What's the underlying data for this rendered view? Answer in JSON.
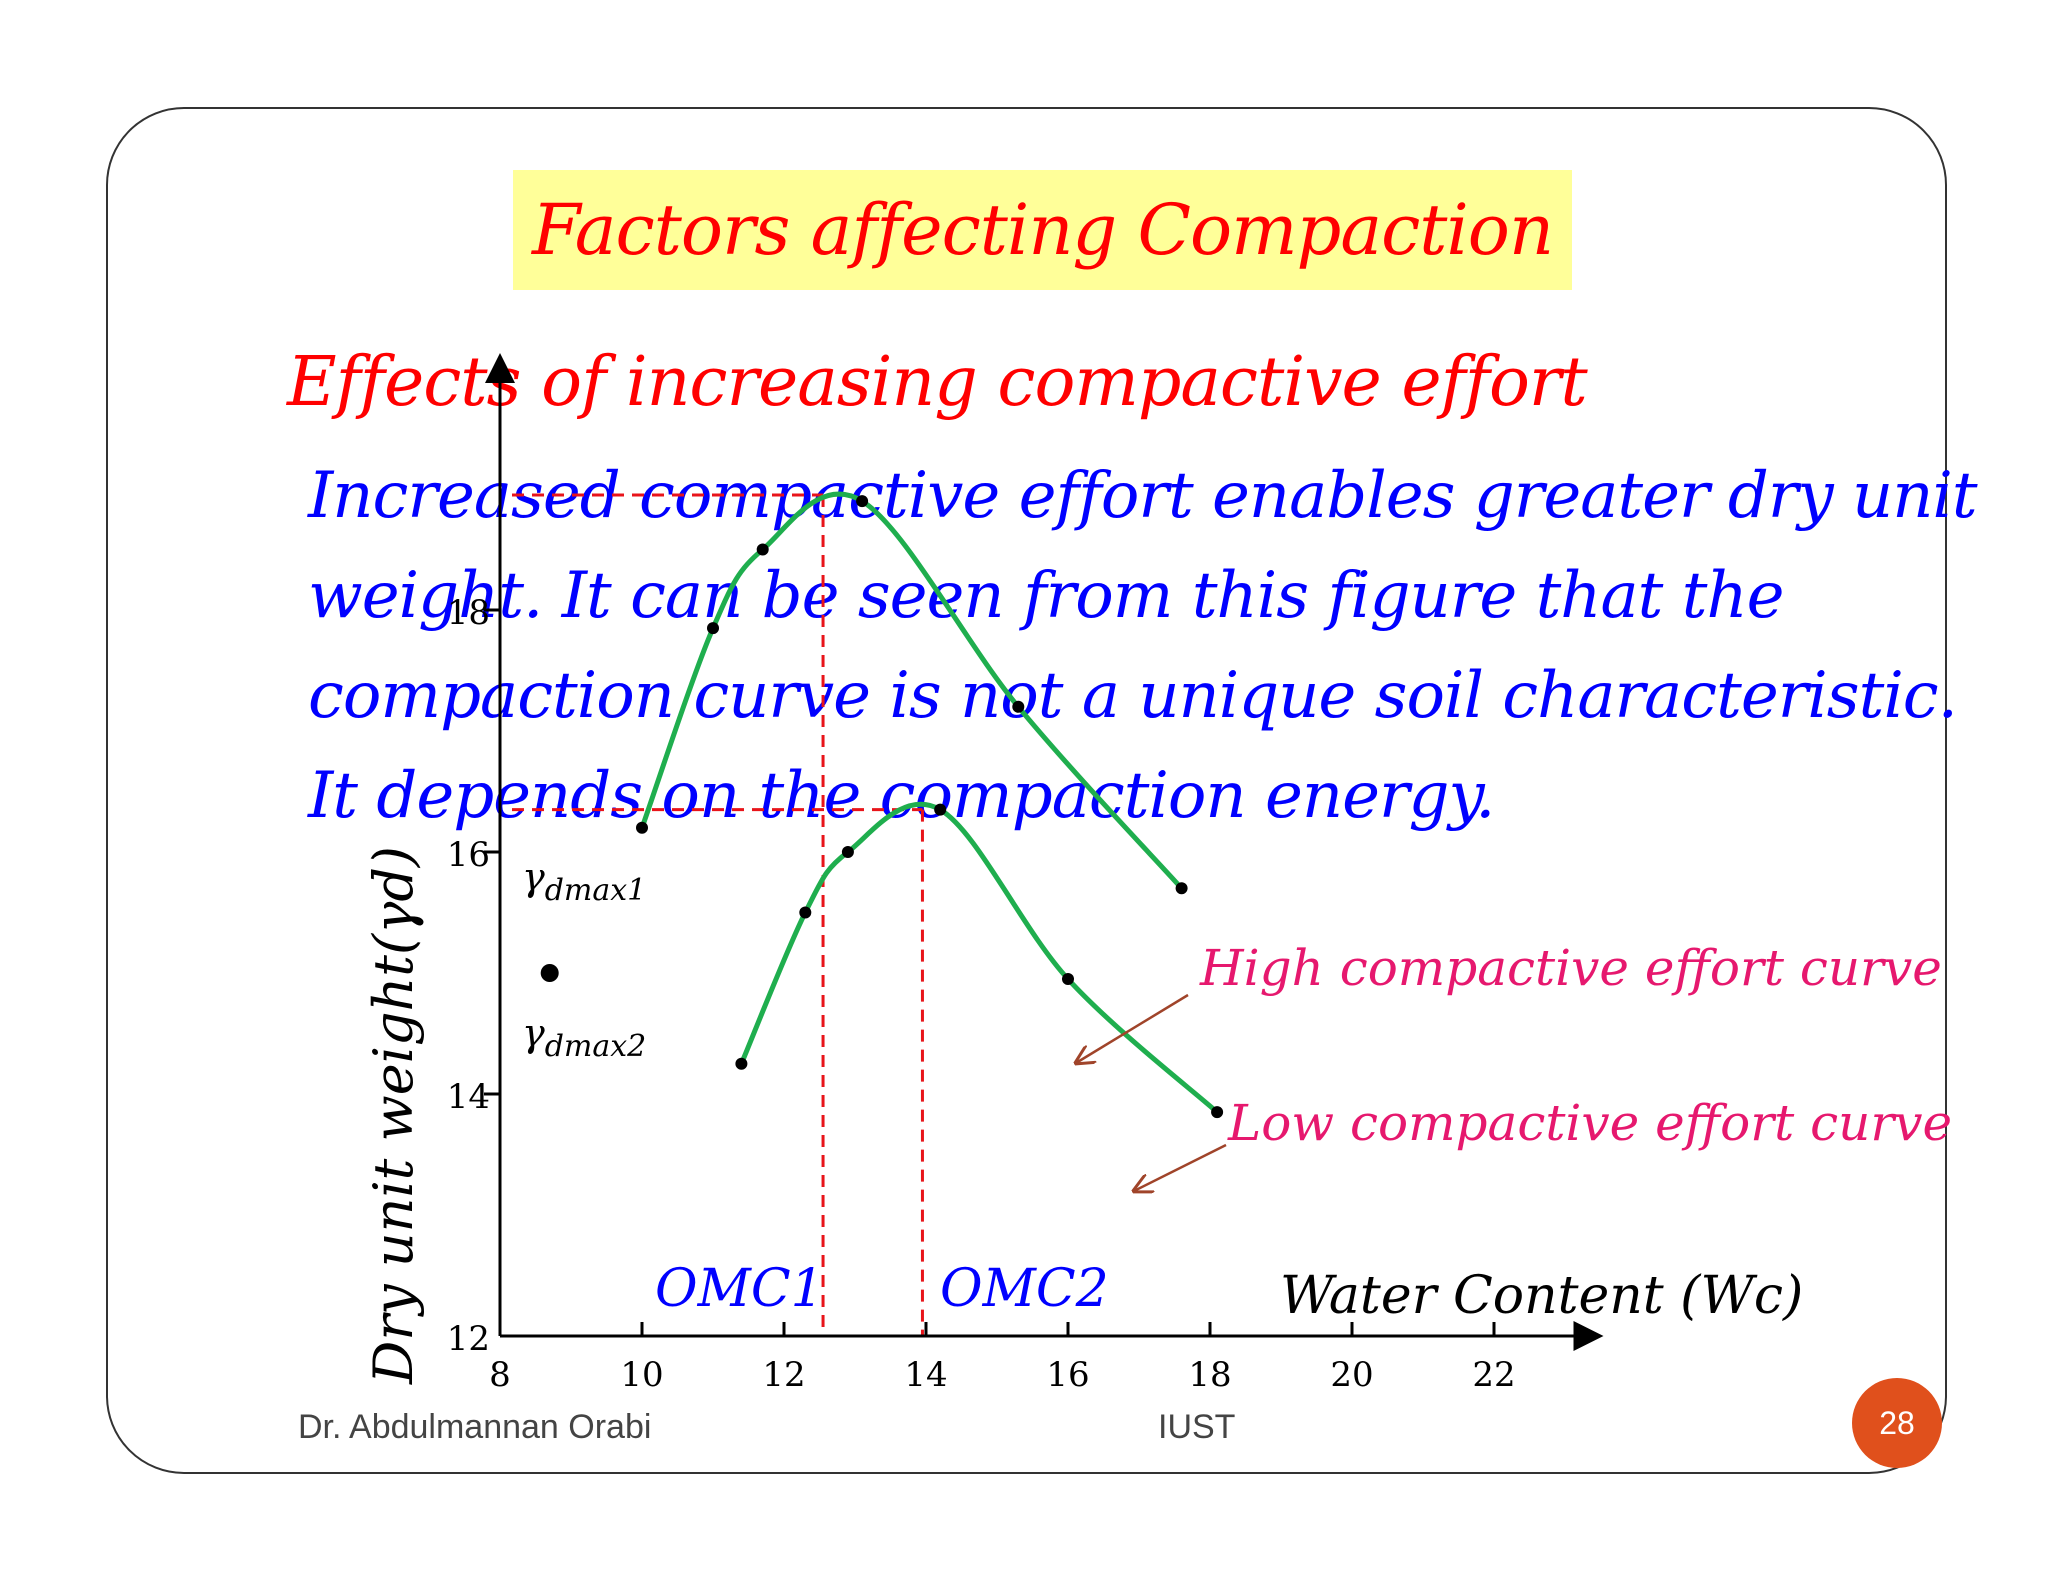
{
  "slide": {
    "title": "Factors affecting Compaction",
    "subtitle": "Effects of  increasing compactive effort",
    "body_lines": [
      "Increased compactive effort enables greater dry unit",
      "weight. It can be seen from this figure that the",
      "compaction curve is not a unique soil characteristic.",
      "It depends on the compaction energy."
    ],
    "footer_author": "Dr. Abdulmannan Orabi",
    "footer_org": "IUST",
    "page_number": "28"
  },
  "colors": {
    "title_red": "#ff0000",
    "body_blue": "#0000ff",
    "curve_green": "#1fae4e",
    "annotation_pink": "#e6186e",
    "guide_red": "#e8141a",
    "arrow_brown": "#a0442a",
    "badge_orange": "#e0501c",
    "title_bg": "#ffff99"
  },
  "chart_data": {
    "type": "line",
    "xlabel": "Water Content (Wc)",
    "ylabel": "Dry unit weight(γd)",
    "x_ticks": [
      8,
      10,
      12,
      14,
      16,
      18,
      20,
      22
    ],
    "y_ticks": [
      12,
      14,
      16,
      18
    ],
    "xlim": [
      8,
      23.5
    ],
    "ylim": [
      12,
      20
    ],
    "series": [
      {
        "name": "High compactive effort curve",
        "points": [
          {
            "x": 10.0,
            "y": 16.2
          },
          {
            "x": 11.0,
            "y": 17.85
          },
          {
            "x": 11.7,
            "y": 18.5
          },
          {
            "x": 13.1,
            "y": 18.9
          },
          {
            "x": 15.3,
            "y": 17.2
          },
          {
            "x": 17.6,
            "y": 15.7
          }
        ]
      },
      {
        "name": "Low compactive effort curve",
        "points": [
          {
            "x": 11.4,
            "y": 14.25
          },
          {
            "x": 12.3,
            "y": 15.5
          },
          {
            "x": 12.9,
            "y": 16.0
          },
          {
            "x": 14.2,
            "y": 16.35
          },
          {
            "x": 16.0,
            "y": 14.95
          },
          {
            "x": 18.1,
            "y": 13.85
          }
        ]
      }
    ],
    "extra_points": [
      {
        "x": 8.7,
        "y": 15.0
      }
    ],
    "reference_lines": {
      "gamma_dmax1": {
        "label": "γdmax1",
        "y": 18.95
      },
      "gamma_dmax2": {
        "label": "γdmax2",
        "y": 16.35
      },
      "omc1": {
        "label": "OMC1",
        "x": 12.55
      },
      "omc2": {
        "label": "OMC2",
        "x": 13.95
      }
    }
  }
}
